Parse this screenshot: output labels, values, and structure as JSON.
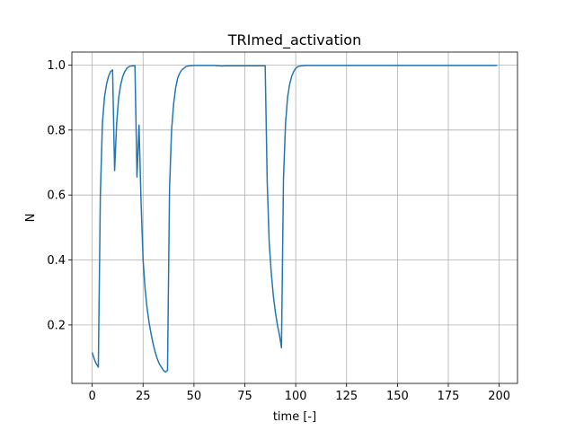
{
  "chart_data": {
    "type": "line",
    "title": "TRImed_activation",
    "xlabel": "time [-]",
    "ylabel": "N",
    "xlim": [
      -10,
      209
    ],
    "ylim": [
      0.02,
      1.04
    ],
    "grid": true,
    "xticks": [
      0,
      25,
      50,
      75,
      100,
      125,
      150,
      175,
      200
    ],
    "xtick_labels": [
      "0",
      "25",
      "50",
      "75",
      "100",
      "125",
      "150",
      "175",
      "200"
    ],
    "yticks": [
      0.2,
      0.4,
      0.6,
      0.8,
      1.0
    ],
    "ytick_labels": [
      "0.2",
      "0.4",
      "0.6",
      "0.8",
      "1.0"
    ],
    "line_color": "#1f77b4",
    "series": [
      {
        "name": "TRImed_activation",
        "x": [
          0,
          1,
          2,
          3,
          4,
          5,
          6,
          7,
          8,
          9,
          10,
          11,
          12,
          13,
          14,
          15,
          16,
          17,
          18,
          19,
          20,
          21,
          22,
          23,
          24,
          25,
          26,
          27,
          28,
          29,
          30,
          31,
          32,
          33,
          34,
          35,
          36,
          37,
          38,
          39,
          40,
          41,
          42,
          43,
          44,
          45,
          46,
          47,
          48,
          50,
          55,
          60,
          64,
          65,
          70,
          75,
          80,
          85,
          86,
          87,
          88,
          89,
          90,
          91,
          92,
          93,
          94,
          95,
          96,
          97,
          98,
          99,
          100,
          101,
          102,
          103,
          105,
          110,
          120,
          130,
          150,
          175,
          199
        ],
        "y": [
          0.115,
          0.095,
          0.08,
          0.07,
          0.6,
          0.82,
          0.9,
          0.94,
          0.965,
          0.98,
          0.985,
          0.675,
          0.82,
          0.9,
          0.94,
          0.965,
          0.98,
          0.99,
          0.995,
          0.997,
          0.998,
          0.998,
          0.655,
          0.815,
          0.58,
          0.4,
          0.31,
          0.25,
          0.205,
          0.17,
          0.14,
          0.115,
          0.095,
          0.08,
          0.07,
          0.06,
          0.055,
          0.06,
          0.62,
          0.8,
          0.88,
          0.93,
          0.96,
          0.975,
          0.985,
          0.99,
          0.995,
          0.997,
          0.998,
          0.999,
          0.999,
          0.999,
          0.997,
          0.998,
          0.998,
          0.998,
          0.998,
          0.998,
          0.64,
          0.45,
          0.36,
          0.29,
          0.24,
          0.2,
          0.17,
          0.13,
          0.65,
          0.82,
          0.9,
          0.94,
          0.965,
          0.98,
          0.99,
          0.995,
          0.997,
          0.998,
          0.999,
          0.999,
          0.999,
          0.999,
          0.999,
          0.999,
          0.999
        ]
      }
    ]
  }
}
